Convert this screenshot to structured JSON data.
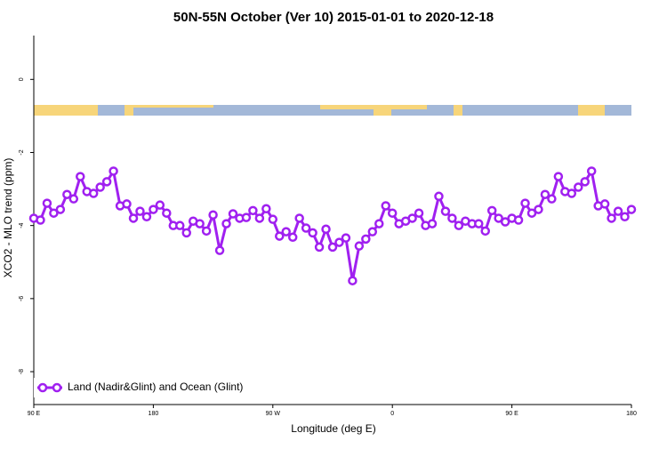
{
  "chart_data": {
    "type": "line",
    "title": "50N-55N October (Ver 10)   2015-01-01 to 2020-12-18",
    "x_label": "Longitude (deg E)",
    "y_label": "XCO2 - MLO trend (ppm)",
    "x": [
      90,
      95,
      100,
      105,
      110,
      115,
      120,
      125,
      130,
      135,
      140,
      145,
      150,
      155,
      160,
      165,
      170,
      175,
      180,
      185,
      190,
      195,
      200,
      205,
      210,
      215,
      220,
      225,
      230,
      235,
      240,
      245,
      250,
      255,
      260,
      265,
      270,
      275,
      280,
      285,
      290,
      295,
      300,
      305,
      310,
      315,
      320,
      325,
      330,
      335,
      340,
      345,
      350,
      355,
      360,
      365,
      370,
      375,
      380,
      385,
      390,
      395,
      400,
      405,
      410,
      415,
      420,
      425,
      430,
      435,
      440,
      445,
      450,
      455,
      460,
      465,
      470,
      475,
      480,
      485,
      490,
      495,
      500,
      505,
      510,
      515,
      520,
      525,
      530,
      535,
      540
    ],
    "series": [
      {
        "name": "Land (Nadir&Glint) and Ocean (Glint)",
        "color": "#a020f0",
        "values": [
          -3.8,
          -3.85,
          -3.39,
          -3.66,
          -3.56,
          -3.15,
          -3.27,
          -2.66,
          -3.07,
          -3.12,
          -2.95,
          -2.8,
          -2.51,
          -3.46,
          -3.41,
          -3.8,
          -3.61,
          -3.76,
          -3.56,
          -3.44,
          -3.66,
          -4.0,
          -4.0,
          -4.2,
          -3.88,
          -3.95,
          -4.15,
          -3.71,
          -4.68,
          -3.95,
          -3.68,
          -3.8,
          -3.78,
          -3.59,
          -3.8,
          -3.54,
          -3.83,
          -4.29,
          -4.17,
          -4.32,
          -3.8,
          -4.07,
          -4.2,
          -4.59,
          -4.1,
          -4.59,
          -4.46,
          -4.34,
          -5.51,
          -4.56,
          -4.37,
          -4.17,
          -3.95,
          -3.46,
          -3.66,
          -3.95,
          -3.88,
          -3.8,
          -3.66,
          -4.0,
          -3.95,
          -3.2,
          -3.61,
          -3.8,
          -4.0,
          -3.88,
          -3.95,
          -3.95,
          -4.15,
          -3.59,
          -3.8,
          -3.9,
          -3.8,
          -3.85,
          -3.39,
          -3.66,
          -3.56,
          -3.15,
          -3.27,
          -2.66,
          -3.07,
          -3.12,
          -2.95,
          -2.8,
          -2.51,
          -3.46,
          -3.41,
          -3.8,
          -3.61,
          -3.76,
          -3.56
        ]
      }
    ],
    "xlim": [
      90,
      540
    ],
    "xticks": [
      {
        "value": 90,
        "label": "90 E"
      },
      180,
      {
        "value": 270,
        "label": "90 W"
      },
      {
        "value": 360,
        "label": "0"
      },
      {
        "value": 450,
        "label": "90 E"
      },
      {
        "value": 540,
        "label": "180"
      }
    ],
    "ylim": [
      -8.9,
      1.2
    ],
    "yticks": [
      0,
      -2,
      -4,
      -6,
      -8
    ],
    "legend": "bottom-left"
  }
}
